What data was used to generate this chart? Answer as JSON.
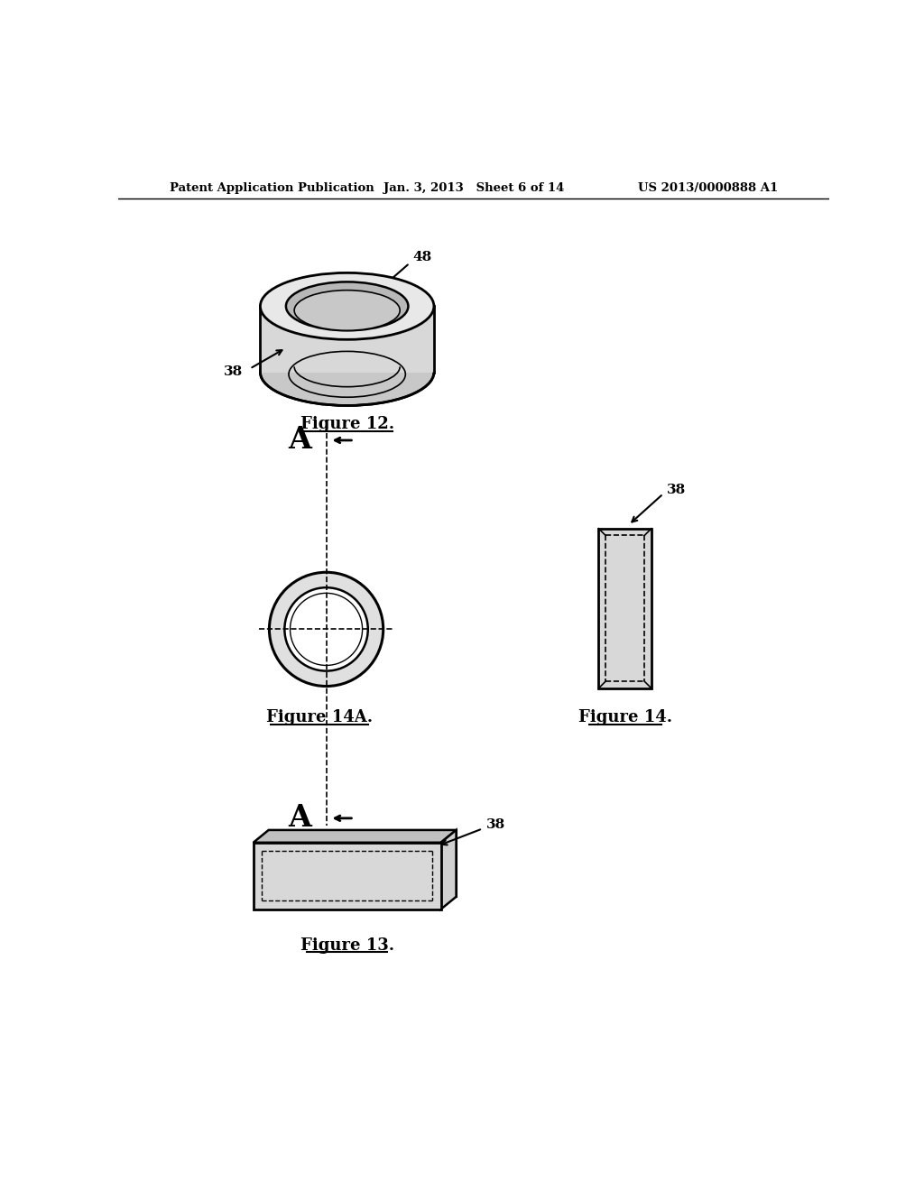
{
  "bg_color": "#ffffff",
  "header_left": "Patent Application Publication",
  "header_center": "Jan. 3, 2013   Sheet 6 of 14",
  "header_right": "US 2013/0000888 A1",
  "fig12_label": "Figure 12.",
  "fig13_label": "Figure 13.",
  "fig14_label": "Figure 14.",
  "fig14a_label": "Figure 14A.",
  "label_38": "38",
  "label_48": "48"
}
